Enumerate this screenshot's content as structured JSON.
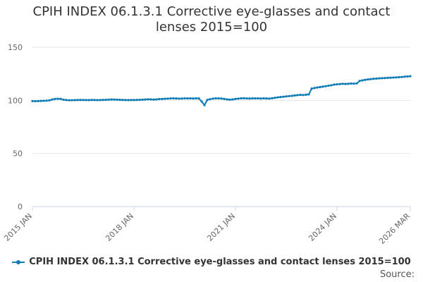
{
  "chart_data": {
    "type": "line",
    "title_lines": [
      "CPIH INDEX 06.1.3.1 Corrective eye-glasses and contact",
      "lenses 2015=100"
    ],
    "x_start": "2015-01",
    "x_end": "2026-03",
    "x_tick_labels": [
      "2015 JAN",
      "2018 JAN",
      "2021 JAN",
      "2024 JAN",
      "2026 MAR"
    ],
    "y_ticks": [
      0,
      50,
      100,
      150
    ],
    "ylim": [
      0,
      150
    ],
    "grid": true,
    "legend_position": "bottom",
    "series": [
      {
        "name": "CPIH INDEX 06.1.3.1 Corrective eye-glasses and contact lenses 2015=100",
        "color": "#0f7cb6",
        "values": [
          99.3,
          99.2,
          99.3,
          99.5,
          99.6,
          99.7,
          100.0,
          100.8,
          101.3,
          101.5,
          101.4,
          100.6,
          100.3,
          100.1,
          100.1,
          100.2,
          100.3,
          100.4,
          100.3,
          100.3,
          100.2,
          100.4,
          100.3,
          100.2,
          100.3,
          100.4,
          100.5,
          100.6,
          100.8,
          100.7,
          100.6,
          100.5,
          100.4,
          100.3,
          100.2,
          100.3,
          100.3,
          100.4,
          100.5,
          100.6,
          100.8,
          101.0,
          100.9,
          100.7,
          100.9,
          101.2,
          101.3,
          101.5,
          101.6,
          101.8,
          101.9,
          101.8,
          101.6,
          101.7,
          101.9,
          101.8,
          101.9,
          101.7,
          101.9,
          101.8,
          99.0,
          95.5,
          100.4,
          101.1,
          101.6,
          101.9,
          101.8,
          101.7,
          101.3,
          100.9,
          100.6,
          100.9,
          101.3,
          101.6,
          101.9,
          102.0,
          101.8,
          101.7,
          101.9,
          101.8,
          101.9,
          101.7,
          101.9,
          101.8,
          101.6,
          102.0,
          102.4,
          102.8,
          103.1,
          103.4,
          103.7,
          104.0,
          104.2,
          104.6,
          104.9,
          105.2,
          105.0,
          105.3,
          105.6,
          111.0,
          111.6,
          112.1,
          112.5,
          112.9,
          113.3,
          113.8,
          114.2,
          114.8,
          115.1,
          115.3,
          115.6,
          115.4,
          115.6,
          115.8,
          115.7,
          115.9,
          118.2,
          118.8,
          119.3,
          119.7,
          120.0,
          120.3,
          120.5,
          120.7,
          120.9,
          121.0,
          121.2,
          121.3,
          121.5,
          121.6,
          121.8,
          122.0,
          122.3,
          122.5,
          122.7
        ]
      }
    ]
  },
  "legend": {
    "label": "CPIH INDEX 06.1.3.1 Corrective eye-glasses and contact lenses 2015=100"
  },
  "source": {
    "label": "Source:"
  }
}
